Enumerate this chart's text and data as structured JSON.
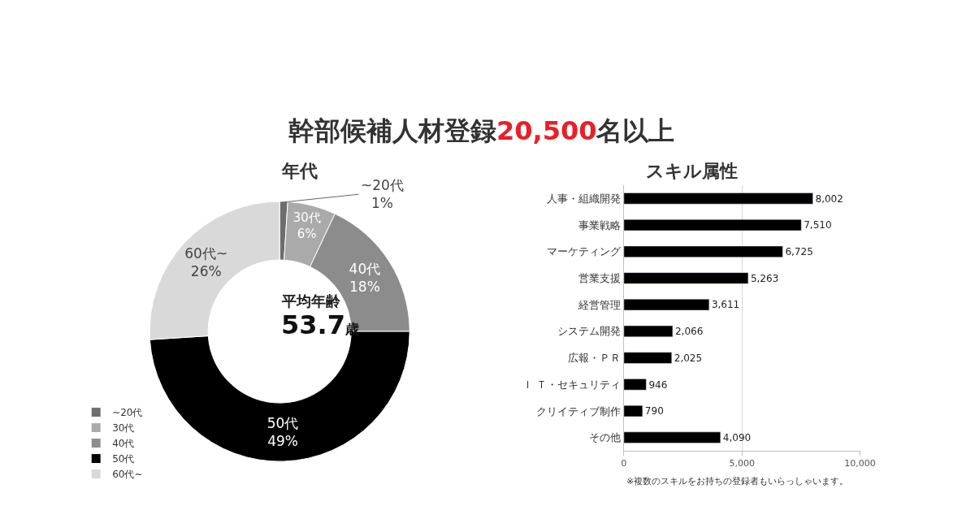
{
  "chart_data": [
    {
      "type": "donut",
      "title": "年代",
      "categories": [
        "~20代",
        "30代",
        "40代",
        "50代",
        "60代~"
      ],
      "values": [
        1,
        6,
        18,
        49,
        26
      ],
      "value_labels": [
        "1%",
        "6%",
        "18%",
        "49%",
        "26%"
      ],
      "colors": [
        "#6e6e6e",
        "#aaaaaa",
        "#8c8c8c",
        "#000000",
        "#d9d9d9"
      ],
      "legend": "bottom left",
      "annotations": [
        "幹部候補人材登録20,500名以上",
        "平均年齢",
        "53.7歳"
      ]
    },
    {
      "type": "bar",
      "orientation": "horizontal",
      "title": "スキル属性",
      "categories": [
        "人事・組織開発",
        "事業戦略",
        "マーケティング",
        "営業支援",
        "経営管理",
        "システム開発",
        "広報・ＰＲ",
        "Ｉ Ｔ・セキュリティ",
        "クリイティブ制作",
        "その他"
      ],
      "values": [
        8002,
        7510,
        6725,
        5263,
        3611,
        2066,
        2025,
        946,
        790,
        4090
      ],
      "value_labels": [
        "8,002",
        "7,510",
        "6,725",
        "5,263",
        "3,611",
        "2,066",
        "2,025",
        "946",
        "790",
        "4,090"
      ],
      "color": "#000000",
      "xlim": [
        0,
        10000
      ],
      "xticks": [
        {
          "value": 0,
          "label": "0"
        },
        {
          "value": 5000,
          "label": "5,000"
        },
        {
          "value": 10000,
          "label": "10,000"
        }
      ],
      "grid": "x",
      "annotations": [
        "※複数のスキルをお持ちの登録者もいらっしゃいます。"
      ]
    }
  ]
}
